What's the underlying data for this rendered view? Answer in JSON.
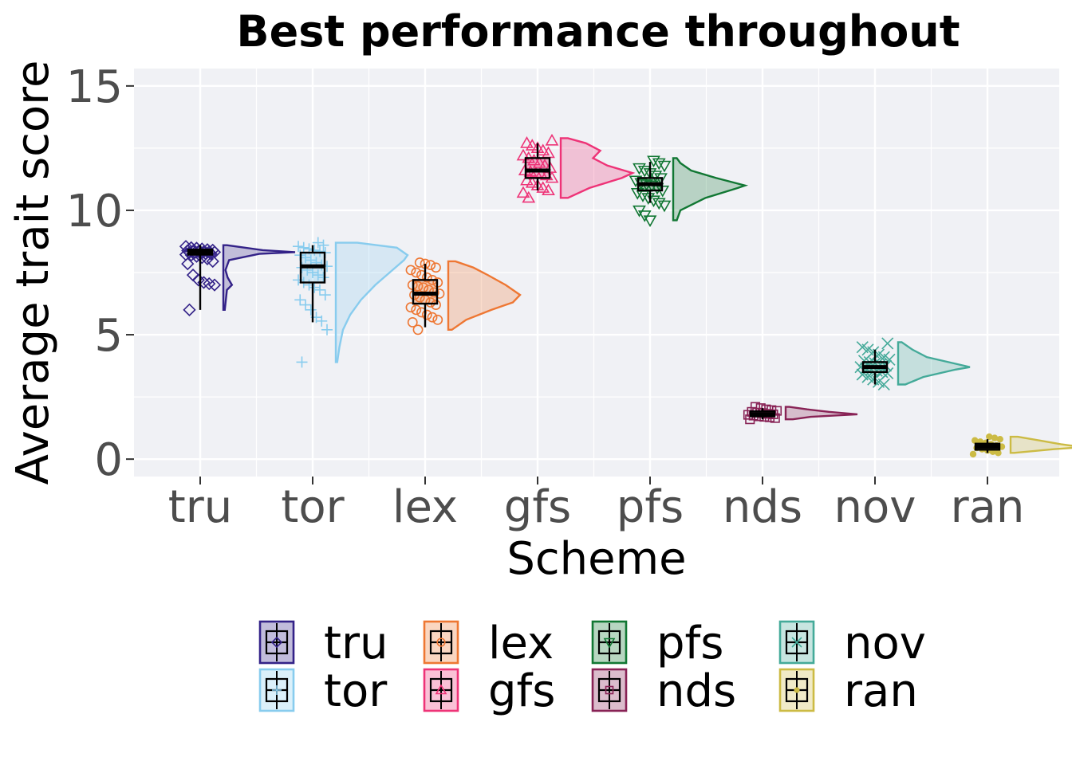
{
  "chart_data": {
    "type": "raincloud",
    "title": "Best performance throughout",
    "xlabel": "Scheme",
    "ylabel": "Average trait score",
    "ylim": [
      -0.7,
      15.7
    ],
    "yticks": [
      0,
      5,
      10,
      15
    ],
    "grid": true,
    "legend_position": "bottom",
    "series": [
      {
        "name": "tru",
        "color": "#332288",
        "marker": "diamond",
        "box": {
          "min": 6.0,
          "q1": 8.22,
          "median": 8.32,
          "q3": 8.42,
          "max": 8.6
        },
        "points": [
          8.55,
          8.5,
          8.48,
          8.45,
          8.42,
          8.4,
          8.38,
          8.36,
          8.35,
          8.34,
          8.33,
          8.32,
          8.31,
          8.3,
          8.28,
          8.26,
          8.25,
          8.22,
          8.2,
          8.15,
          8.1,
          8.05,
          7.95,
          7.85,
          7.4,
          7.2,
          7.1,
          7.05,
          7.0,
          6.0
        ],
        "density": [
          [
            6.0,
            0.02
          ],
          [
            6.8,
            0.05
          ],
          [
            7.0,
            0.12
          ],
          [
            7.3,
            0.06
          ],
          [
            7.6,
            0.03
          ],
          [
            8.0,
            0.08
          ],
          [
            8.25,
            0.5
          ],
          [
            8.32,
            1.0
          ],
          [
            8.4,
            0.55
          ],
          [
            8.5,
            0.3
          ],
          [
            8.6,
            0.05
          ]
        ]
      },
      {
        "name": "tor",
        "color": "#88CCEE",
        "marker": "plus",
        "box": {
          "min": 5.5,
          "q1": 7.1,
          "median": 7.75,
          "q3": 8.3,
          "max": 8.6
        },
        "points": [
          8.7,
          8.6,
          8.55,
          8.5,
          8.45,
          8.4,
          8.35,
          8.3,
          8.2,
          8.1,
          8.0,
          7.9,
          7.8,
          7.75,
          7.7,
          7.6,
          7.5,
          7.4,
          7.3,
          7.2,
          7.1,
          7.0,
          6.9,
          6.8,
          6.6,
          6.4,
          6.2,
          6.0,
          5.7,
          5.55,
          5.2,
          3.9
        ],
        "density": [
          [
            3.9,
            0.02
          ],
          [
            4.5,
            0.05
          ],
          [
            5.2,
            0.1
          ],
          [
            5.8,
            0.2
          ],
          [
            6.4,
            0.35
          ],
          [
            7.0,
            0.55
          ],
          [
            7.5,
            0.75
          ],
          [
            8.0,
            0.95
          ],
          [
            8.2,
            1.0
          ],
          [
            8.5,
            0.85
          ],
          [
            8.7,
            0.3
          ]
        ]
      },
      {
        "name": "lex",
        "color": "#EE7733",
        "marker": "circle",
        "box": {
          "min": 5.3,
          "q1": 6.25,
          "median": 6.65,
          "q3": 7.2,
          "max": 7.85
        },
        "points": [
          7.9,
          7.85,
          7.8,
          7.7,
          7.6,
          7.5,
          7.4,
          7.3,
          7.2,
          7.1,
          7.0,
          6.95,
          6.9,
          6.8,
          6.7,
          6.65,
          6.6,
          6.5,
          6.4,
          6.3,
          6.2,
          6.1,
          6.0,
          5.9,
          5.8,
          5.7,
          5.6,
          5.5,
          5.2
        ],
        "density": [
          [
            5.2,
            0.05
          ],
          [
            5.6,
            0.25
          ],
          [
            6.0,
            0.6
          ],
          [
            6.3,
            0.9
          ],
          [
            6.6,
            1.0
          ],
          [
            7.0,
            0.8
          ],
          [
            7.4,
            0.55
          ],
          [
            7.7,
            0.35
          ],
          [
            7.95,
            0.1
          ]
        ]
      },
      {
        "name": "gfs",
        "color": "#EE3377",
        "marker": "triangle",
        "box": {
          "min": 10.8,
          "q1": 11.3,
          "median": 11.6,
          "q3": 12.1,
          "max": 12.7
        },
        "points": [
          12.8,
          12.7,
          12.6,
          12.5,
          12.4,
          12.3,
          12.2,
          12.1,
          12.0,
          11.9,
          11.8,
          11.7,
          11.6,
          11.55,
          11.5,
          11.45,
          11.4,
          11.3,
          11.2,
          11.1,
          11.0,
          10.9,
          10.8,
          10.7,
          10.5
        ],
        "density": [
          [
            10.5,
            0.1
          ],
          [
            10.9,
            0.4
          ],
          [
            11.3,
            0.85
          ],
          [
            11.5,
            1.0
          ],
          [
            11.8,
            0.65
          ],
          [
            12.1,
            0.45
          ],
          [
            12.4,
            0.55
          ],
          [
            12.7,
            0.35
          ],
          [
            12.9,
            0.1
          ]
        ]
      },
      {
        "name": "pfs",
        "color": "#117733",
        "marker": "triangle-down",
        "box": {
          "min": 10.3,
          "q1": 10.8,
          "median": 11.05,
          "q3": 11.3,
          "max": 11.95
        },
        "points": [
          12.0,
          11.9,
          11.8,
          11.7,
          11.6,
          11.5,
          11.4,
          11.3,
          11.2,
          11.1,
          11.05,
          11.0,
          10.9,
          10.8,
          10.7,
          10.6,
          10.5,
          10.4,
          10.3,
          10.2,
          10.0,
          9.8,
          9.6
        ],
        "density": [
          [
            9.6,
            0.05
          ],
          [
            10.0,
            0.1
          ],
          [
            10.5,
            0.45
          ],
          [
            10.9,
            0.9
          ],
          [
            11.0,
            1.0
          ],
          [
            11.3,
            0.6
          ],
          [
            11.6,
            0.25
          ],
          [
            11.9,
            0.1
          ],
          [
            12.1,
            0.05
          ]
        ]
      },
      {
        "name": "nds",
        "color": "#882255",
        "marker": "square",
        "box": {
          "min": 1.6,
          "q1": 1.72,
          "median": 1.8,
          "q3": 1.92,
          "max": 2.05
        },
        "points": [
          2.1,
          2.05,
          2.0,
          1.97,
          1.94,
          1.9,
          1.87,
          1.85,
          1.82,
          1.8,
          1.78,
          1.75,
          1.72,
          1.7,
          1.68,
          1.65,
          1.6
        ],
        "density": [
          [
            1.6,
            0.1
          ],
          [
            1.7,
            0.35
          ],
          [
            1.8,
            1.0
          ],
          [
            1.9,
            0.6
          ],
          [
            2.0,
            0.3
          ],
          [
            2.1,
            0.05
          ]
        ]
      },
      {
        "name": "nov",
        "color": "#44AA99",
        "marker": "x",
        "box": {
          "min": 3.0,
          "q1": 3.5,
          "median": 3.7,
          "q3": 3.9,
          "max": 4.4
        },
        "points": [
          4.65,
          4.5,
          4.4,
          4.3,
          4.2,
          4.1,
          4.0,
          3.95,
          3.9,
          3.85,
          3.8,
          3.75,
          3.7,
          3.65,
          3.6,
          3.55,
          3.5,
          3.45,
          3.4,
          3.3,
          3.2,
          3.1,
          3.0
        ],
        "density": [
          [
            3.0,
            0.1
          ],
          [
            3.3,
            0.35
          ],
          [
            3.6,
            0.8
          ],
          [
            3.7,
            1.0
          ],
          [
            3.9,
            0.7
          ],
          [
            4.1,
            0.4
          ],
          [
            4.4,
            0.2
          ],
          [
            4.7,
            0.05
          ]
        ]
      },
      {
        "name": "ran",
        "color": "#CCBB44",
        "marker": "dot",
        "box": {
          "min": 0.25,
          "q1": 0.38,
          "median": 0.5,
          "q3": 0.62,
          "max": 0.8
        },
        "points": [
          0.9,
          0.85,
          0.8,
          0.75,
          0.7,
          0.65,
          0.6,
          0.55,
          0.5,
          0.45,
          0.4,
          0.35,
          0.3,
          0.25,
          0.2
        ],
        "density": [
          [
            0.25,
            0.05
          ],
          [
            0.4,
            0.6
          ],
          [
            0.48,
            1.0
          ],
          [
            0.6,
            0.7
          ],
          [
            0.75,
            0.4
          ],
          [
            0.9,
            0.1
          ]
        ]
      }
    ]
  },
  "colors": {
    "panel": "#F0F1F5",
    "grid": "#FFFFFF",
    "tick": "#4D4D4D"
  }
}
